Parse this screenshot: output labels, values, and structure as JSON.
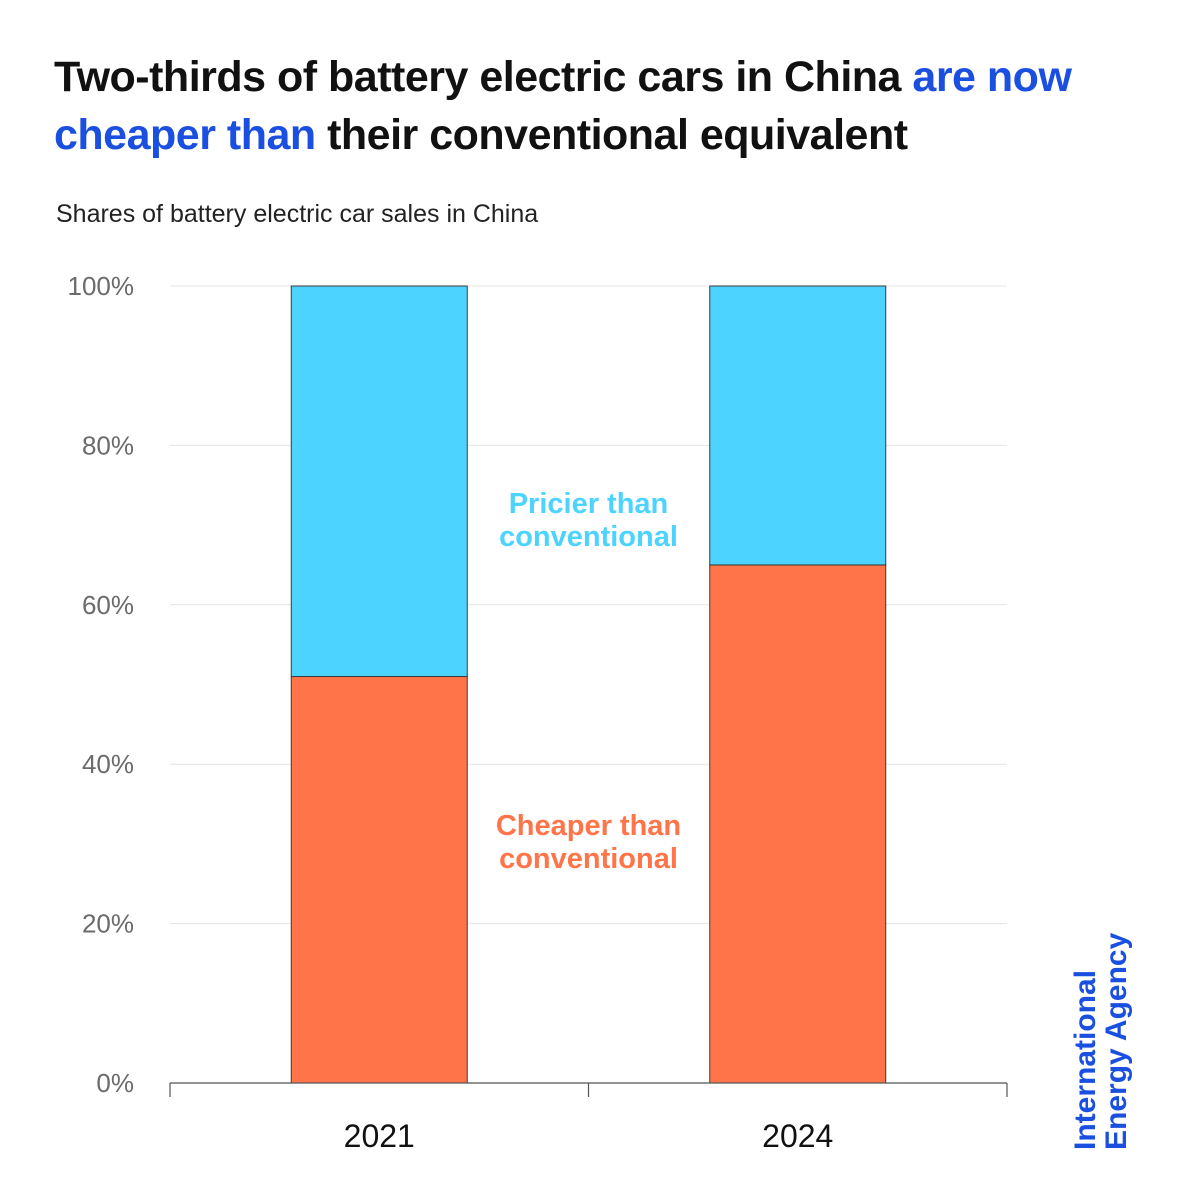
{
  "title": {
    "part1": "Two-thirds of battery electric cars in China ",
    "highlight": "are now cheaper than",
    "part2": " their conventional equivalent"
  },
  "subtitle": "Shares of battery electric car sales in China",
  "brand": {
    "line1": "International",
    "line2": "Energy Agency"
  },
  "colors": {
    "cheaper": "#ff7549",
    "pricier": "#4cd3ff",
    "cheaper_label": "#ff7549",
    "pricier_label": "#4cd3ff",
    "accent": "#1a4fe0"
  },
  "chart_data": {
    "type": "bar",
    "stacked": true,
    "title": "Two-thirds of battery electric cars in China are now cheaper than their conventional equivalent",
    "subtitle": "Shares of battery electric car sales in China",
    "categories": [
      "2021",
      "2024"
    ],
    "series": [
      {
        "name": "Cheaper than conventional",
        "values": [
          51,
          65
        ]
      },
      {
        "name": "Pricier than conventional",
        "values": [
          49,
          35
        ]
      }
    ],
    "series_labels": [
      {
        "lines": [
          "Cheaper than",
          "conventional"
        ]
      },
      {
        "lines": [
          "Pricier than",
          "conventional"
        ]
      }
    ],
    "xlabel": "",
    "ylabel": "",
    "ylim": [
      0,
      100
    ],
    "yticks": [
      0,
      20,
      40,
      60,
      80,
      100
    ],
    "ytick_labels": [
      "0%",
      "20%",
      "40%",
      "60%",
      "80%",
      "100%"
    ],
    "grid": true,
    "legend": "inline-between-bars"
  }
}
